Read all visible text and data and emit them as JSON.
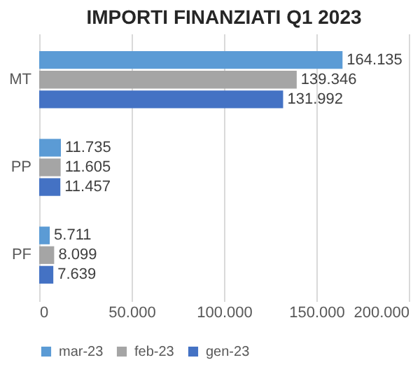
{
  "chart_data": {
    "type": "bar",
    "orientation": "horizontal",
    "title": "IMPORTI FINANZIATI Q1 2023",
    "categories": [
      "MT",
      "PP",
      "PF"
    ],
    "series": [
      {
        "name": "mar-23",
        "color": "#5b9bd5",
        "values": [
          164135,
          11735,
          5711
        ],
        "value_labels": [
          "164.135",
          "11.735",
          "5.711"
        ]
      },
      {
        "name": "feb-23",
        "color": "#a5a5a5",
        "values": [
          139346,
          11605,
          8099
        ],
        "value_labels": [
          "139.346",
          "11.605",
          "8.099"
        ]
      },
      {
        "name": "gen-23",
        "color": "#4472c4",
        "values": [
          131992,
          11457,
          7639
        ],
        "value_labels": [
          "131.992",
          "11.457",
          "7.639"
        ]
      }
    ],
    "xlim": [
      0,
      200000
    ],
    "xticks": [
      0,
      {
        "value": 50000,
        "label": "50.000"
      },
      {
        "value": 100000,
        "label": "100.000"
      },
      {
        "value": 150000,
        "label": "150.000"
      },
      {
        "value": 200000,
        "label": "200.000"
      }
    ],
    "grid": "x",
    "legend": "bottom"
  }
}
